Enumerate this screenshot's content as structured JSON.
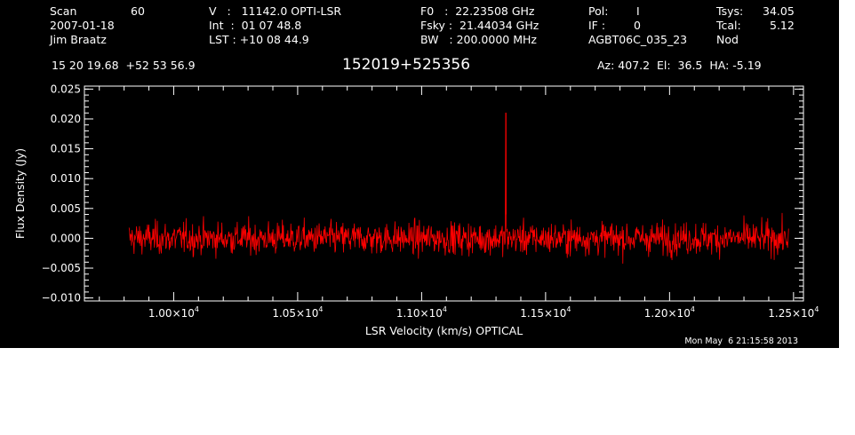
{
  "header": {
    "scan_label": "Scan",
    "scan_value": "60",
    "date": "2007-01-18",
    "observer": "Jim Braatz",
    "velocity_line": "V   :   11142.0 OPTI-LSR",
    "int_line": "Int  :  01 07 48.8",
    "lst_line": "LST : +10 08 44.9",
    "f0_line": "F0   :  22.23508 GHz",
    "fsky_line": "Fsky :  21.44034 GHz",
    "bw_line": "BW   : 200.0000 MHz",
    "pol_label": "Pol:",
    "pol_value": "I",
    "if_label": "IF :",
    "if_value": "0",
    "project": "AGBT06C_035_23",
    "tsys_label": "Tsys:",
    "tsys_value": "34.05",
    "tcal_label": "Tcal:",
    "tcal_value": "5.12",
    "mode": "Nod",
    "coordinates": "15 20 19.68  +52 53 56.9",
    "source": "152019+525356",
    "pointing": "Az: 407.2  El:  36.5  HA: -5.19"
  },
  "timestamp": "Mon May  6 21:15:58 2013",
  "colors": {
    "background": "#000000",
    "foreground": "#ffffff",
    "series": "#ff0000"
  },
  "chart_data": {
    "type": "line",
    "xlabel": "LSR Velocity (km/s) OPTICAL",
    "ylabel": "Flux Density (Jy)",
    "xlim": [
      9640,
      12540
    ],
    "ylim": [
      -0.0105,
      0.0255
    ],
    "x_ticks": [
      {
        "value": 10000,
        "mantissa": "1.00",
        "exponent": "4"
      },
      {
        "value": 10500,
        "mantissa": "1.05",
        "exponent": "4"
      },
      {
        "value": 11000,
        "mantissa": "1.10",
        "exponent": "4"
      },
      {
        "value": 11500,
        "mantissa": "1.15",
        "exponent": "4"
      },
      {
        "value": 12000,
        "mantissa": "1.20",
        "exponent": "4"
      },
      {
        "value": 12500,
        "mantissa": "1.25",
        "exponent": "4"
      }
    ],
    "y_ticks": [
      {
        "value": -0.01,
        "label": "−0.010"
      },
      {
        "value": -0.005,
        "label": "−0.005"
      },
      {
        "value": 0.0,
        "label": "0.000"
      },
      {
        "value": 0.005,
        "label": "0.005"
      },
      {
        "value": 0.01,
        "label": "0.010"
      },
      {
        "value": 0.015,
        "label": "0.015"
      },
      {
        "value": 0.02,
        "label": "0.020"
      },
      {
        "value": 0.025,
        "label": "0.025"
      }
    ],
    "series": [
      {
        "color": "#ff0000",
        "x_start": 9820,
        "x_end": 12480,
        "n_points": 1330,
        "noise_rms": 0.0019,
        "envelope": [
          [
            9820,
            0.006,
            -0.003
          ],
          [
            9900,
            0.004,
            -0.0055
          ],
          [
            10000,
            0.0045,
            -0.005
          ],
          [
            10200,
            0.005,
            -0.0045
          ],
          [
            10500,
            0.0045,
            -0.005
          ],
          [
            10800,
            0.004,
            -0.005
          ],
          [
            11000,
            0.0045,
            -0.0045
          ],
          [
            11200,
            0.0045,
            -0.0045
          ],
          [
            11350,
            0.0055,
            -0.0045
          ],
          [
            11600,
            0.0045,
            -0.005
          ],
          [
            11900,
            0.0045,
            -0.005
          ],
          [
            12200,
            0.0045,
            -0.0045
          ],
          [
            12480,
            0.005,
            -0.0035
          ]
        ],
        "spike": {
          "x": 11340,
          "y": 0.021
        }
      }
    ]
  }
}
